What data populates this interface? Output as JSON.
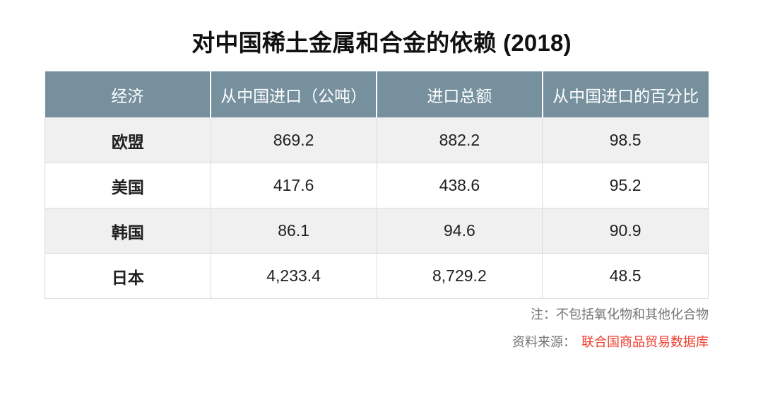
{
  "title": "对中国稀土金属和合金的依赖 (2018)",
  "colors": {
    "header_bg": "#76909e",
    "header_text": "#ffffff",
    "row_alt_bg": "#f0f0f0",
    "grid_border": "#dbdbdb",
    "body_text": "#1f1f1f",
    "note_text": "#737373",
    "link_red": "#ef3b2d"
  },
  "table": {
    "columns": [
      "经济",
      "从中国进口（公吨）",
      "进口总额",
      "从中国进口的百分比"
    ],
    "rows": [
      {
        "economy": "欧盟",
        "imports_from_china": "869.2",
        "total_imports": "882.2",
        "pct_from_china": "98.5"
      },
      {
        "economy": "美国",
        "imports_from_china": "417.6",
        "total_imports": "438.6",
        "pct_from_china": "95.2"
      },
      {
        "economy": "韩国",
        "imports_from_china": "86.1",
        "total_imports": "94.6",
        "pct_from_china": "90.9"
      },
      {
        "economy": "日本",
        "imports_from_china": "4,233.4",
        "total_imports": "8,729.2",
        "pct_from_china": "48.5"
      }
    ]
  },
  "footnote": {
    "note": "注：不包括氧化物和其他化合物",
    "source_label": "资料来源：",
    "source_link": "联合国商品贸易数据库"
  },
  "chart_data": {
    "type": "table",
    "title": "对中国稀土金属和合金的依赖 (2018)",
    "columns": [
      "经济",
      "从中国进口（公吨）",
      "进口总额",
      "从中国进口的百分比"
    ],
    "rows": [
      [
        "欧盟",
        869.2,
        882.2,
        98.5
      ],
      [
        "美国",
        417.6,
        438.6,
        95.2
      ],
      [
        "韩国",
        86.1,
        94.6,
        90.9
      ],
      [
        "日本",
        4233.4,
        8729.2,
        48.5
      ]
    ],
    "note": "不包括氧化物和其他化合物",
    "source": "联合国商品贸易数据库"
  }
}
